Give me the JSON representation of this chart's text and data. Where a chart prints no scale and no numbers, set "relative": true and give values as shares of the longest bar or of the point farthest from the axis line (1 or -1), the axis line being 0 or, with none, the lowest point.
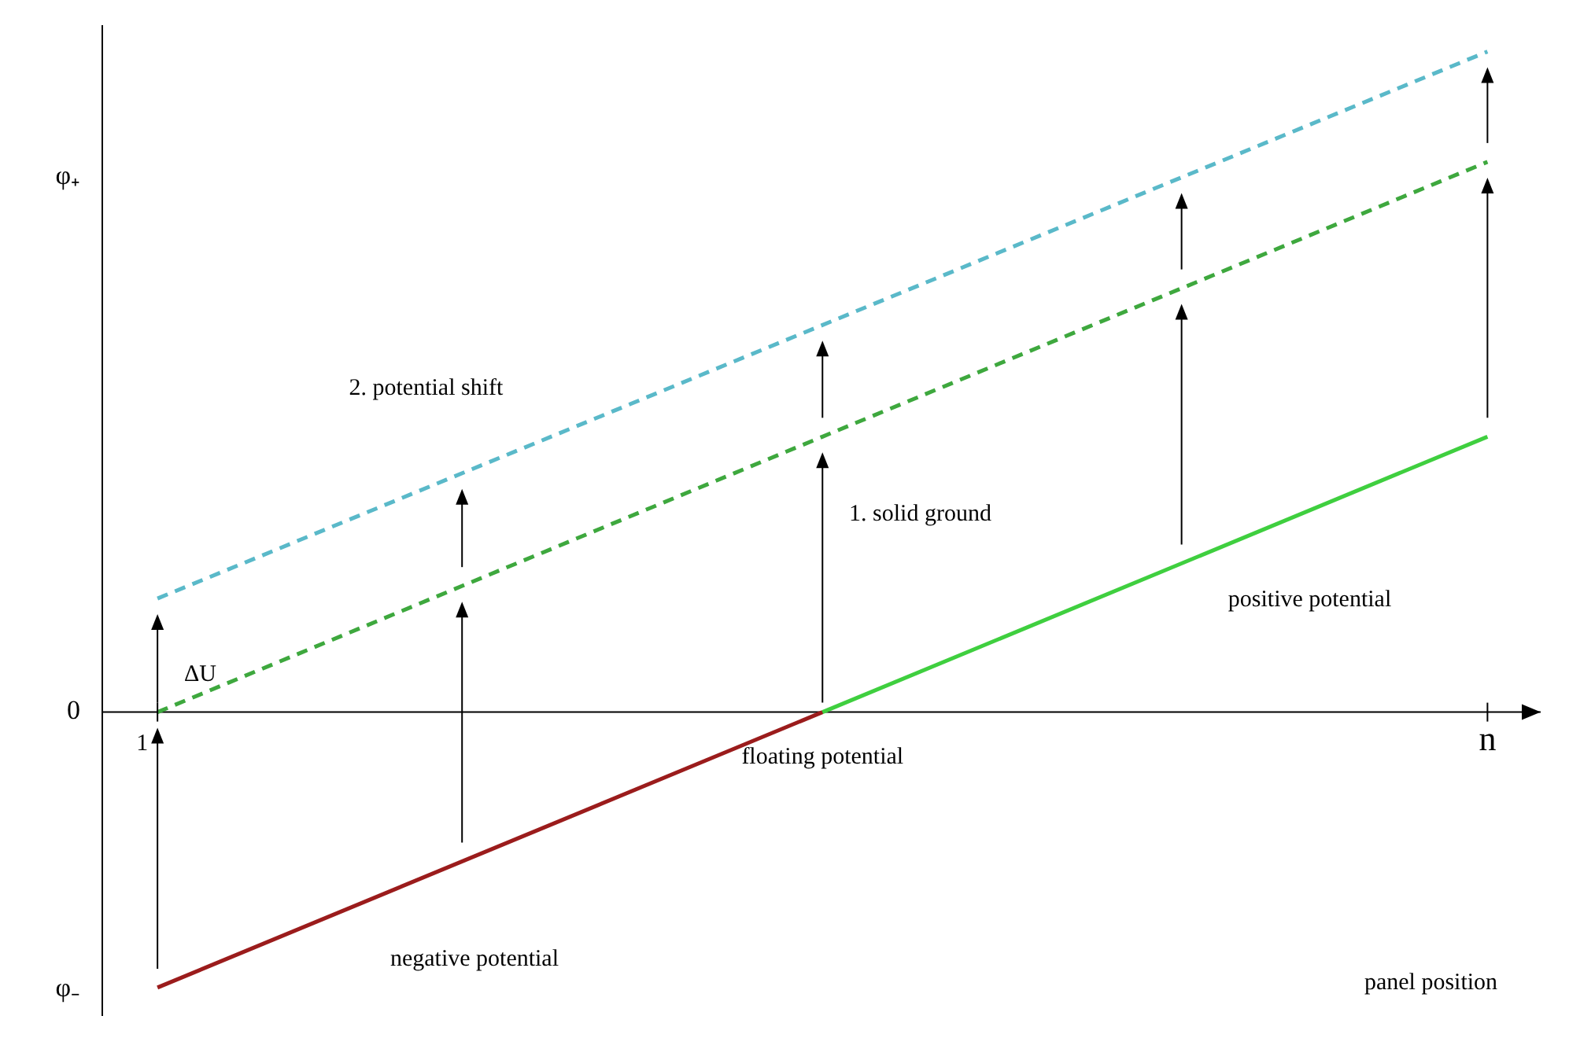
{
  "chart_data": {
    "type": "line",
    "relative": true,
    "xlabel": "panel position",
    "categories": [
      "1",
      null,
      "n"
    ],
    "series": [
      {
        "color": "#9b1c1c",
        "values": [
          -0.417,
          0,
          null
        ],
        "line_style": "solid"
      },
      {
        "color": "#3fcf3f",
        "values": [
          null,
          0,
          0.417
        ],
        "line_style": "solid"
      },
      {
        "color": "#3ea83e",
        "values": [
          0,
          0.417,
          0.833
        ],
        "line_style": "dashed"
      },
      {
        "color": "#5ab9c9",
        "values": [
          0.172,
          0.586,
          1
        ],
        "line_style": "dashed"
      }
    ],
    "marker": "none",
    "ref_lines": [
      {
        "axis": "y",
        "value": 0,
        "color": "#000000"
      }
    ],
    "annotations": [
      "φ₊",
      "0",
      "φ₋",
      "2. potential shift",
      "ΔU",
      "1. solid ground",
      "positive potential",
      "floating potential",
      "negative potential"
    ]
  }
}
